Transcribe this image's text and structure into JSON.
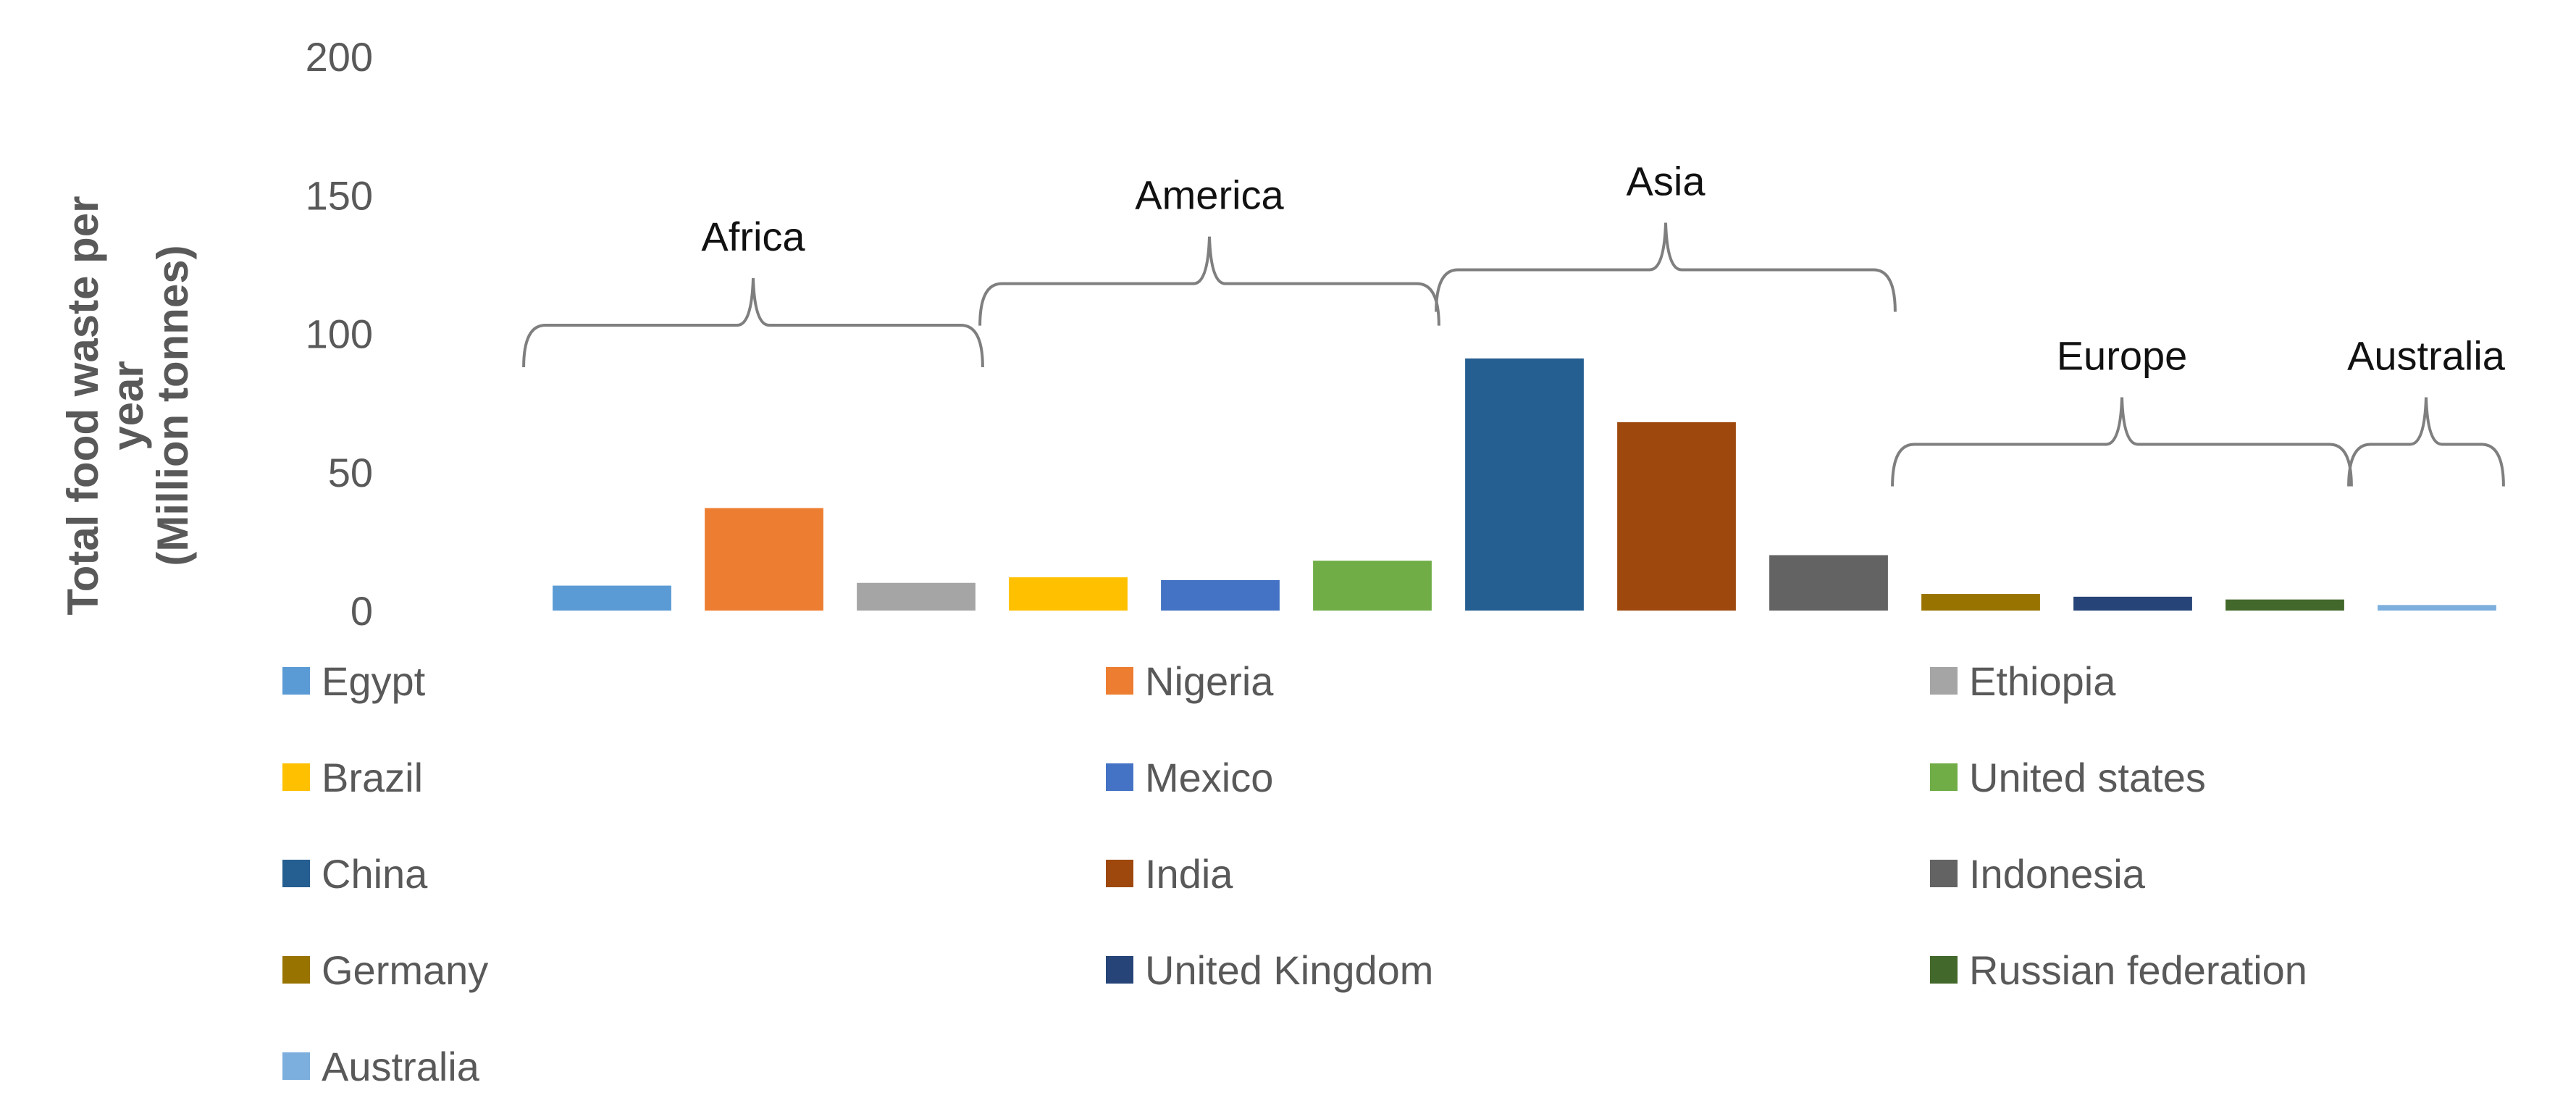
{
  "chart_data": {
    "type": "bar",
    "ylabel": [
      "Total food waste per",
      "year",
      "(Million tonnes)"
    ],
    "ylim": [
      0,
      200
    ],
    "yticks": [
      "0",
      "50",
      "100",
      "150",
      "200"
    ],
    "grid": false,
    "legend_position": "bottom",
    "series": [
      {
        "name": "Egypt",
        "value": 9,
        "color": "#5B9BD5"
      },
      {
        "name": "Nigeria",
        "value": 37,
        "color": "#ED7D31"
      },
      {
        "name": "Ethiopia",
        "value": 10,
        "color": "#A5A5A5"
      },
      {
        "name": "Brazil",
        "value": 12,
        "color": "#FFC000"
      },
      {
        "name": "Mexico",
        "value": 11,
        "color": "#4472C4"
      },
      {
        "name": "United states",
        "value": 18,
        "color": "#70AD47"
      },
      {
        "name": "China",
        "value": 91,
        "color": "#255E91"
      },
      {
        "name": "India",
        "value": 68,
        "color": "#9E480E"
      },
      {
        "name": "Indonesia",
        "value": 20,
        "color": "#636363"
      },
      {
        "name": "Germany",
        "value": 6,
        "color": "#997300"
      },
      {
        "name": "United Kingdom",
        "value": 5,
        "color": "#264478"
      },
      {
        "name": "Russian federation",
        "value": 4,
        "color": "#43682B"
      },
      {
        "name": "Australia",
        "value": 2,
        "color": "#7CAFDD"
      }
    ],
    "annotations": [
      {
        "label": "Africa",
        "bars": [
          0,
          2
        ],
        "level": 103
      },
      {
        "label": "America",
        "bars": [
          3,
          5
        ],
        "level": 118
      },
      {
        "label": "Asia",
        "bars": [
          6,
          8
        ],
        "level": 123
      },
      {
        "label": "Europe",
        "bars": [
          9,
          11
        ],
        "level": 60
      },
      {
        "label": "Australia",
        "bars": [
          12,
          12
        ],
        "level": 60
      }
    ]
  }
}
